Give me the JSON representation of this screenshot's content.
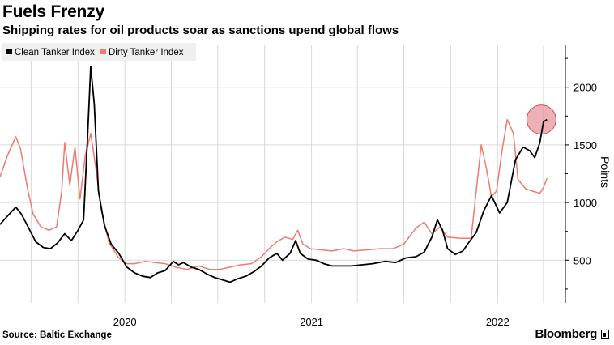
{
  "header": {
    "title": "Fuels Frenzy",
    "subtitle": "Shipping rates for oil products soar as sanctions upend global flows"
  },
  "footer": {
    "source": "Source: Baltic Exchange",
    "brand": "Bloomberg"
  },
  "colors": {
    "clean": "#000000",
    "dirty": "#f07a72",
    "highlight": "#e0707c",
    "grid": "#d9d9d9",
    "legend_bg": "#efefef"
  },
  "chart_data": {
    "type": "line",
    "title": "Fuels Frenzy",
    "subtitle": "Shipping rates for oil products soar as sanctions upend global flows",
    "ylabel": "Points",
    "xlabel": "",
    "ylim": [
      130,
      2370
    ],
    "xlim": [
      "2019-05-01",
      "2022-05-14"
    ],
    "y_ticks": [
      500,
      1000,
      1500,
      2000
    ],
    "x_ticks": [
      "2020",
      "2021",
      "2022"
    ],
    "x_tick_dates": [
      "2020-01-01",
      "2021-01-01",
      "2022-01-01"
    ],
    "grid": true,
    "legend_position": "top-left",
    "annotation": "circle at latest Clean Tanker Index value",
    "series": [
      {
        "name": "Clean Tanker Index",
        "color": "#000000",
        "points": [
          [
            "2019-05-01",
            810
          ],
          [
            "2019-05-15",
            880
          ],
          [
            "2019-06-01",
            960
          ],
          [
            "2019-06-12",
            900
          ],
          [
            "2019-06-25",
            790
          ],
          [
            "2019-07-10",
            660
          ],
          [
            "2019-07-25",
            610
          ],
          [
            "2019-08-08",
            600
          ],
          [
            "2019-08-22",
            650
          ],
          [
            "2019-09-05",
            730
          ],
          [
            "2019-09-18",
            670
          ],
          [
            "2019-10-01",
            760
          ],
          [
            "2019-10-12",
            850
          ],
          [
            "2019-10-20",
            1600
          ],
          [
            "2019-10-26",
            2180
          ],
          [
            "2019-11-02",
            1850
          ],
          [
            "2019-11-10",
            1100
          ],
          [
            "2019-11-22",
            800
          ],
          [
            "2019-12-05",
            640
          ],
          [
            "2019-12-20",
            560
          ],
          [
            "2020-01-05",
            440
          ],
          [
            "2020-01-20",
            390
          ],
          [
            "2020-02-05",
            360
          ],
          [
            "2020-02-20",
            350
          ],
          [
            "2020-03-05",
            390
          ],
          [
            "2020-03-20",
            410
          ],
          [
            "2020-04-05",
            490
          ],
          [
            "2020-04-15",
            460
          ],
          [
            "2020-04-25",
            480
          ],
          [
            "2020-05-10",
            440
          ],
          [
            "2020-05-25",
            420
          ],
          [
            "2020-06-10",
            380
          ],
          [
            "2020-06-25",
            350
          ],
          [
            "2020-07-10",
            330
          ],
          [
            "2020-07-25",
            310
          ],
          [
            "2020-08-10",
            340
          ],
          [
            "2020-08-25",
            360
          ],
          [
            "2020-09-10",
            400
          ],
          [
            "2020-09-25",
            450
          ],
          [
            "2020-10-10",
            520
          ],
          [
            "2020-10-25",
            560
          ],
          [
            "2020-11-05",
            500
          ],
          [
            "2020-11-20",
            560
          ],
          [
            "2020-12-01",
            670
          ],
          [
            "2020-12-10",
            560
          ],
          [
            "2020-12-25",
            510
          ],
          [
            "2021-01-10",
            500
          ],
          [
            "2021-01-25",
            470
          ],
          [
            "2021-02-10",
            450
          ],
          [
            "2021-03-01",
            450
          ],
          [
            "2021-03-20",
            450
          ],
          [
            "2021-04-10",
            460
          ],
          [
            "2021-05-01",
            470
          ],
          [
            "2021-05-25",
            490
          ],
          [
            "2021-06-15",
            480
          ],
          [
            "2021-07-05",
            520
          ],
          [
            "2021-07-25",
            530
          ],
          [
            "2021-08-10",
            570
          ],
          [
            "2021-08-25",
            700
          ],
          [
            "2021-09-05",
            850
          ],
          [
            "2021-09-15",
            760
          ],
          [
            "2021-09-25",
            600
          ],
          [
            "2021-10-10",
            550
          ],
          [
            "2021-10-25",
            580
          ],
          [
            "2021-11-05",
            650
          ],
          [
            "2021-11-20",
            740
          ],
          [
            "2021-12-05",
            930
          ],
          [
            "2021-12-20",
            1060
          ],
          [
            "2022-01-05",
            910
          ],
          [
            "2022-01-20",
            1000
          ],
          [
            "2022-02-05",
            1370
          ],
          [
            "2022-02-20",
            1480
          ],
          [
            "2022-03-05",
            1450
          ],
          [
            "2022-03-15",
            1390
          ],
          [
            "2022-03-25",
            1520
          ],
          [
            "2022-04-01",
            1700
          ],
          [
            "2022-04-08",
            1720
          ]
        ]
      },
      {
        "name": "Dirty Tanker Index",
        "color": "#f07a72",
        "points": [
          [
            "2019-05-01",
            1220
          ],
          [
            "2019-05-15",
            1400
          ],
          [
            "2019-06-01",
            1570
          ],
          [
            "2019-06-10",
            1470
          ],
          [
            "2019-06-25",
            1100
          ],
          [
            "2019-07-05",
            900
          ],
          [
            "2019-07-20",
            790
          ],
          [
            "2019-08-05",
            760
          ],
          [
            "2019-08-20",
            790
          ],
          [
            "2019-08-30",
            1100
          ],
          [
            "2019-09-05",
            1520
          ],
          [
            "2019-09-15",
            1150
          ],
          [
            "2019-09-25",
            1480
          ],
          [
            "2019-10-05",
            1030
          ],
          [
            "2019-10-15",
            1400
          ],
          [
            "2019-10-26",
            1600
          ],
          [
            "2019-11-05",
            1300
          ],
          [
            "2019-11-15",
            950
          ],
          [
            "2019-12-01",
            650
          ],
          [
            "2019-12-20",
            520
          ],
          [
            "2020-01-05",
            470
          ],
          [
            "2020-01-20",
            470
          ],
          [
            "2020-02-10",
            490
          ],
          [
            "2020-03-01",
            480
          ],
          [
            "2020-03-20",
            470
          ],
          [
            "2020-04-10",
            440
          ],
          [
            "2020-05-01",
            420
          ],
          [
            "2020-05-25",
            450
          ],
          [
            "2020-06-15",
            420
          ],
          [
            "2020-07-05",
            420
          ],
          [
            "2020-07-25",
            440
          ],
          [
            "2020-08-15",
            460
          ],
          [
            "2020-09-05",
            470
          ],
          [
            "2020-09-25",
            530
          ],
          [
            "2020-10-10",
            600
          ],
          [
            "2020-10-25",
            660
          ],
          [
            "2020-11-10",
            700
          ],
          [
            "2020-11-25",
            680
          ],
          [
            "2020-12-05",
            760
          ],
          [
            "2020-12-15",
            640
          ],
          [
            "2020-12-30",
            600
          ],
          [
            "2021-01-20",
            590
          ],
          [
            "2021-02-10",
            580
          ],
          [
            "2021-03-05",
            600
          ],
          [
            "2021-03-25",
            580
          ],
          [
            "2021-04-20",
            590
          ],
          [
            "2021-05-15",
            600
          ],
          [
            "2021-06-10",
            600
          ],
          [
            "2021-07-01",
            640
          ],
          [
            "2021-07-25",
            780
          ],
          [
            "2021-08-10",
            830
          ],
          [
            "2021-08-25",
            730
          ],
          [
            "2021-09-10",
            790
          ],
          [
            "2021-09-25",
            700
          ],
          [
            "2021-10-20",
            690
          ],
          [
            "2021-11-10",
            690
          ],
          [
            "2021-11-20",
            1100
          ],
          [
            "2021-11-30",
            1500
          ],
          [
            "2021-12-10",
            1300
          ],
          [
            "2021-12-20",
            1050
          ],
          [
            "2021-12-30",
            1100
          ],
          [
            "2022-01-10",
            1460
          ],
          [
            "2022-01-20",
            1720
          ],
          [
            "2022-02-01",
            1600
          ],
          [
            "2022-02-10",
            1200
          ],
          [
            "2022-02-25",
            1120
          ],
          [
            "2022-03-10",
            1100
          ],
          [
            "2022-03-25",
            1080
          ],
          [
            "2022-04-01",
            1130
          ],
          [
            "2022-04-08",
            1210
          ]
        ]
      }
    ]
  }
}
